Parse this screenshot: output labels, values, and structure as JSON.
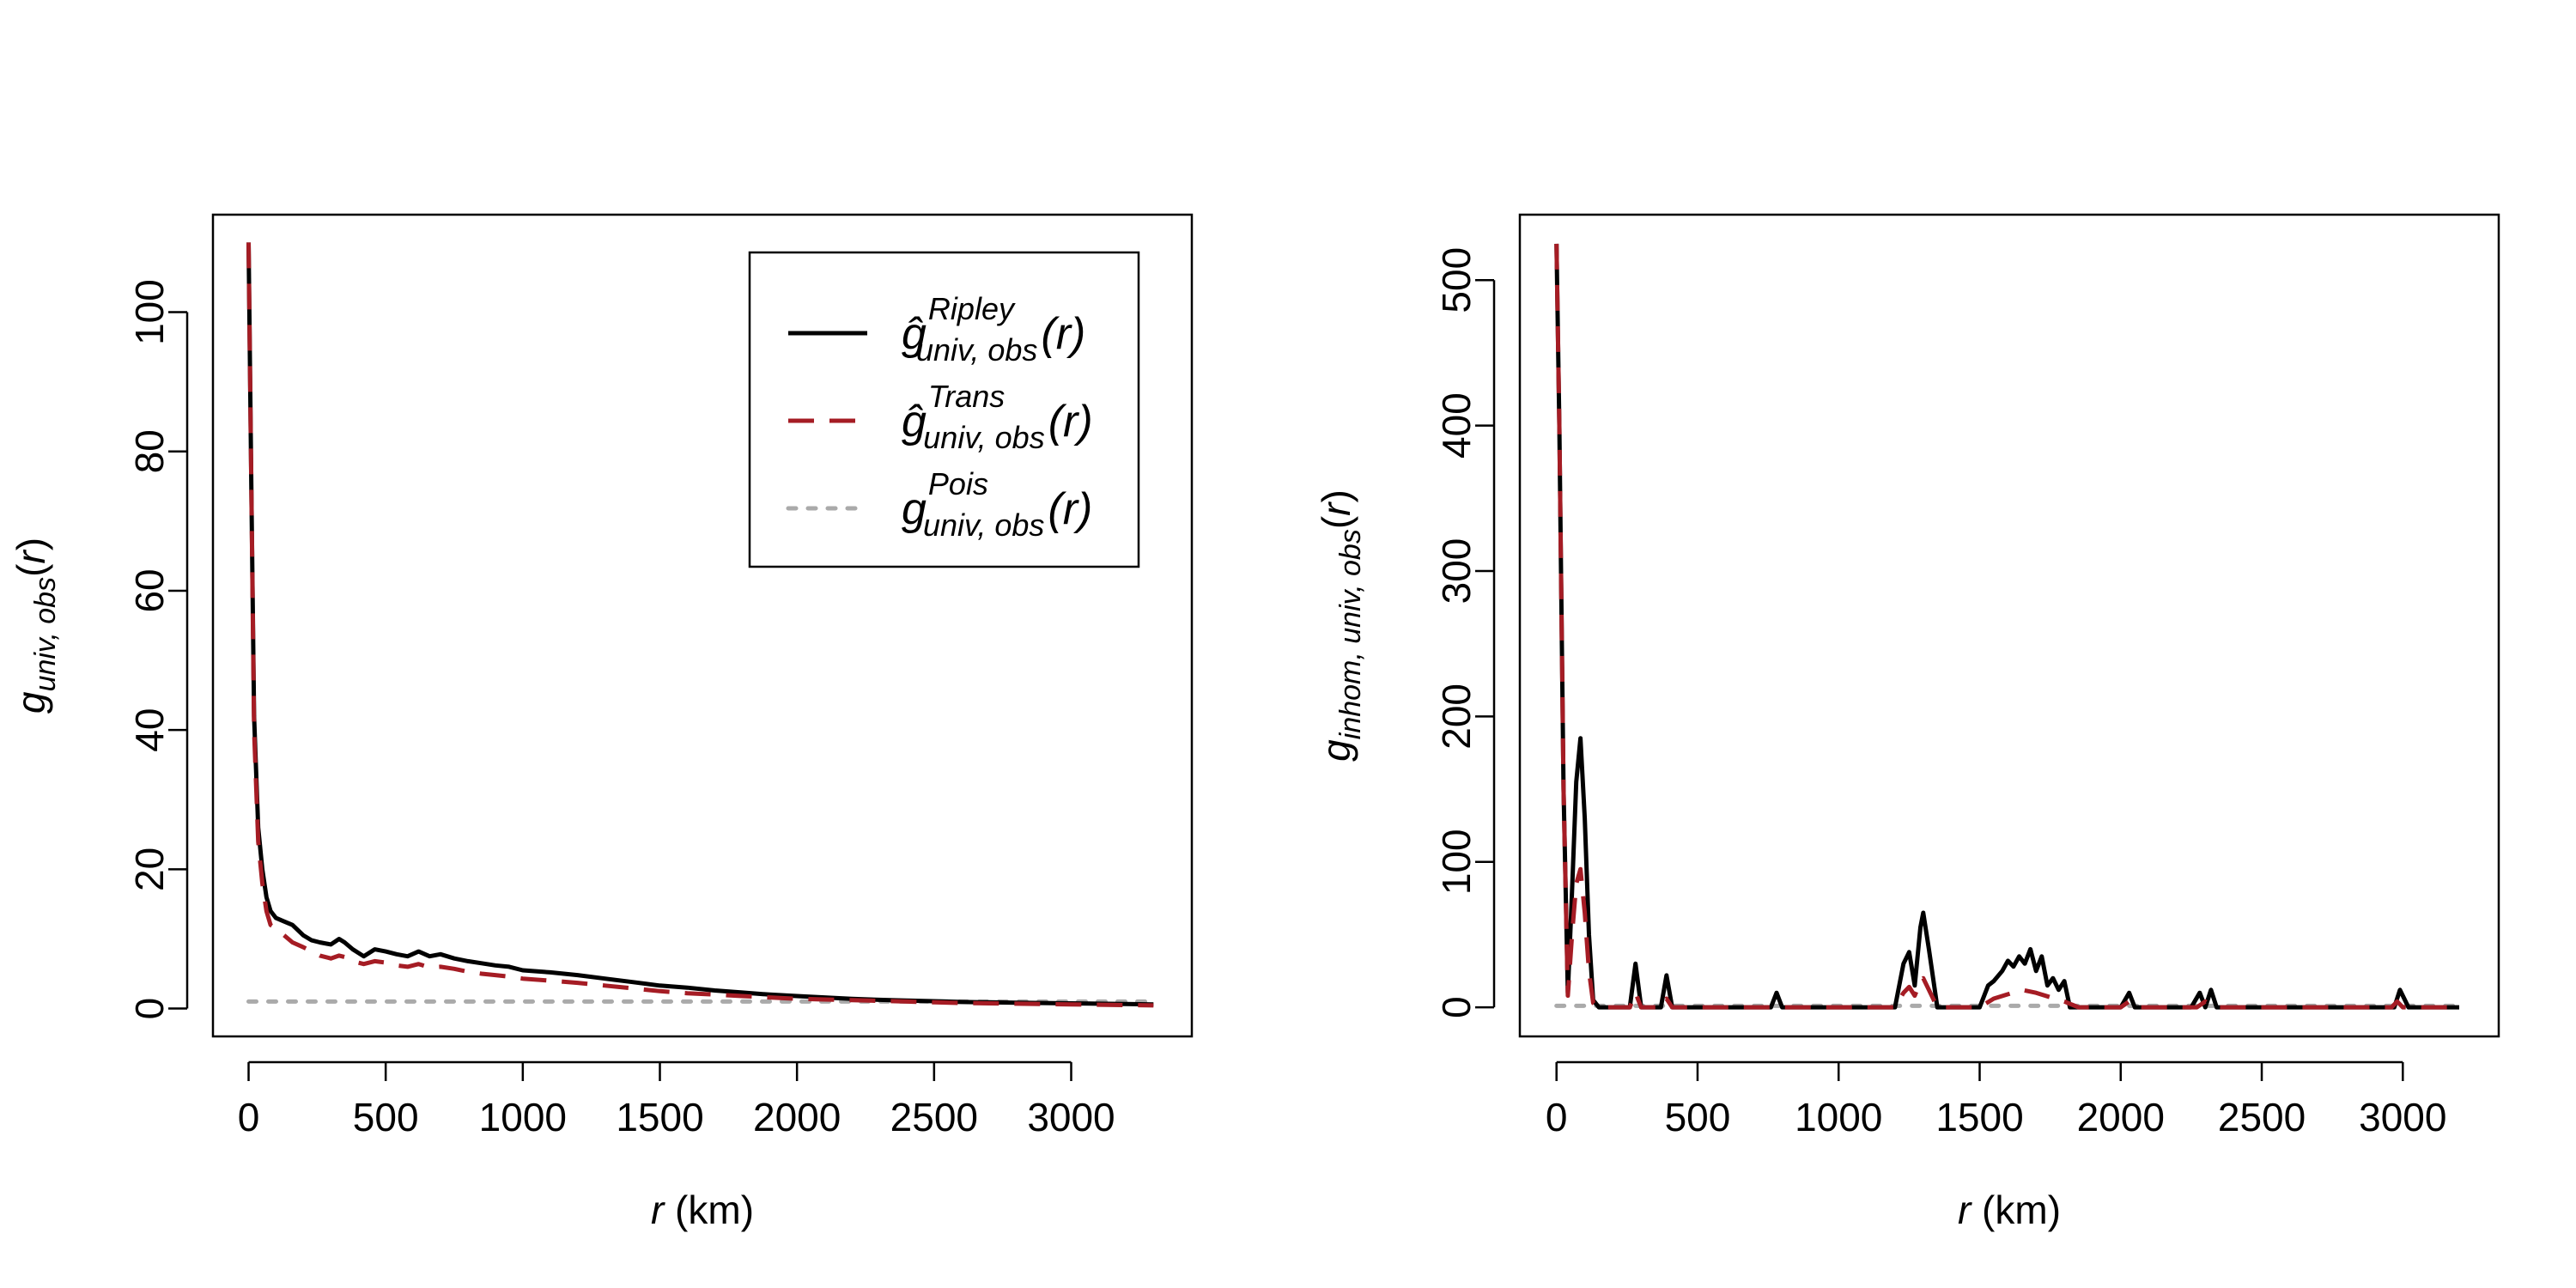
{
  "chart_data": [
    {
      "type": "line",
      "xlabel": "r (km)",
      "ylabel": "g_{univ, obs}(r)",
      "xlim": [
        -130,
        3440
      ],
      "ylim": [
        -4,
        114
      ],
      "xticks": [
        0,
        500,
        1000,
        1500,
        2000,
        2500,
        3000
      ],
      "yticks": [
        0,
        20,
        40,
        60,
        80,
        100
      ],
      "grid": false,
      "legend_position": "top-right",
      "series": [
        {
          "name": "ĝ^Ripley_univ, obs(r)",
          "color": "#000000",
          "style": "solid",
          "x": [
            0,
            10,
            20,
            35,
            50,
            65,
            80,
            100,
            130,
            160,
            200,
            230,
            260,
            300,
            330,
            350,
            380,
            420,
            460,
            500,
            540,
            580,
            620,
            660,
            700,
            750,
            800,
            850,
            900,
            950,
            1000,
            1100,
            1200,
            1300,
            1400,
            1500,
            1600,
            1700,
            1800,
            1900,
            2000,
            2100,
            2200,
            2300,
            2400,
            2500,
            2600,
            2700,
            2800,
            2900,
            3000,
            3100,
            3200,
            3300
          ],
          "y": [
            110,
            75,
            42,
            26,
            20,
            16,
            14,
            13,
            12.5,
            12,
            10.5,
            9.8,
            9.5,
            9.2,
            10,
            9.5,
            8.5,
            7.5,
            8.5,
            8.2,
            7.8,
            7.5,
            8.2,
            7.5,
            7.8,
            7.2,
            6.8,
            6.5,
            6.2,
            6,
            5.5,
            5.2,
            4.8,
            4.3,
            3.8,
            3.3,
            3,
            2.6,
            2.3,
            2,
            1.8,
            1.6,
            1.4,
            1.25,
            1.15,
            1.05,
            0.95,
            0.9,
            0.85,
            0.8,
            0.75,
            0.7,
            0.65,
            0.6
          ]
        },
        {
          "name": "ĝ^Trans_univ, obs(r)",
          "color": "#A51C24",
          "style": "dashed",
          "x": [
            0,
            10,
            20,
            35,
            50,
            65,
            80,
            100,
            130,
            160,
            200,
            230,
            260,
            300,
            330,
            350,
            380,
            420,
            460,
            500,
            540,
            580,
            620,
            660,
            700,
            750,
            800,
            850,
            900,
            950,
            1000,
            1100,
            1200,
            1300,
            1400,
            1500,
            1600,
            1700,
            1800,
            1900,
            2000,
            2100,
            2200,
            2300,
            2400,
            2500,
            2600,
            2700,
            2800,
            2900,
            3000,
            3100,
            3200,
            3300
          ],
          "y": [
            110,
            75,
            40,
            24,
            18,
            14,
            12,
            11.5,
            10.5,
            9.5,
            8.8,
            8.2,
            7.6,
            7.2,
            7.6,
            7.4,
            6.8,
            6.4,
            6.8,
            6.6,
            6.2,
            6,
            6.4,
            5.9,
            6,
            5.7,
            5.3,
            5,
            4.8,
            4.6,
            4.3,
            4,
            3.7,
            3.3,
            2.9,
            2.5,
            2.2,
            2,
            1.8,
            1.6,
            1.4,
            1.3,
            1.2,
            1.1,
            1,
            0.9,
            0.8,
            0.75,
            0.7,
            0.65,
            0.6,
            0.55,
            0.5,
            0.45
          ]
        },
        {
          "name": "g^Pois_univ, obs(r)",
          "color": "#AAAAAA",
          "style": "dotted",
          "x": [
            0,
            3300
          ],
          "y": [
            1,
            1
          ]
        }
      ],
      "legend": [
        {
          "sym": "ĝ",
          "sup": "Ripley",
          "sub": "univ, obs",
          "arg": "(r)"
        },
        {
          "sym": "ĝ",
          "sup": "Trans",
          "sub": "univ, obs",
          "arg": "(r)"
        },
        {
          "sym": "g",
          "sup": "Pois",
          "sub": "univ, obs",
          "arg": "(r)"
        }
      ]
    },
    {
      "type": "line",
      "xlabel": "r (km)",
      "ylabel": "g_{inhom, univ, obs}(r)",
      "xlim": [
        -130,
        3340
      ],
      "ylim": [
        -20,
        545
      ],
      "xticks": [
        0,
        500,
        1000,
        1500,
        2000,
        2500,
        3000
      ],
      "yticks": [
        0,
        100,
        200,
        300,
        400,
        500
      ],
      "grid": false,
      "series": [
        {
          "name": "",
          "color": "#000000",
          "style": "solid",
          "x": [
            0,
            10,
            25,
            40,
            55,
            70,
            85,
            100,
            115,
            130,
            150,
            200,
            260,
            280,
            300,
            340,
            370,
            390,
            410,
            450,
            500,
            700,
            760,
            780,
            800,
            850,
            1000,
            1150,
            1200,
            1230,
            1250,
            1270,
            1290,
            1300,
            1320,
            1350,
            1400,
            1500,
            1530,
            1550,
            1580,
            1600,
            1620,
            1640,
            1660,
            1680,
            1700,
            1720,
            1740,
            1760,
            1780,
            1800,
            1820,
            1850,
            1950,
            2000,
            2030,
            2050,
            2100,
            2250,
            2280,
            2300,
            2320,
            2340,
            2360,
            2400,
            2900,
            2950,
            2970,
            2990,
            3020,
            3100,
            3200
          ],
          "y": [
            525,
            400,
            150,
            10,
            80,
            155,
            185,
            130,
            50,
            5,
            0,
            0,
            0,
            30,
            0,
            0,
            0,
            22,
            0,
            0,
            0,
            0,
            0,
            10,
            0,
            0,
            0,
            0,
            0,
            30,
            38,
            15,
            55,
            65,
            40,
            0,
            0,
            0,
            15,
            18,
            25,
            32,
            28,
            35,
            30,
            40,
            25,
            35,
            15,
            20,
            12,
            18,
            0,
            0,
            0,
            0,
            10,
            0,
            0,
            0,
            10,
            0,
            12,
            0,
            0,
            0,
            0,
            0,
            0,
            12,
            0,
            0,
            0
          ]
        },
        {
          "name": "",
          "color": "#A51C24",
          "style": "dashed",
          "x": [
            0,
            10,
            25,
            40,
            55,
            70,
            85,
            100,
            115,
            130,
            150,
            200,
            260,
            280,
            300,
            340,
            370,
            390,
            410,
            450,
            500,
            1200,
            1230,
            1250,
            1270,
            1290,
            1300,
            1320,
            1350,
            1500,
            1550,
            1600,
            1650,
            1700,
            1750,
            1800,
            1850,
            2000,
            2030,
            2050,
            2270,
            2300,
            2330,
            2960,
            2980,
            3000,
            3200
          ],
          "y": [
            525,
            400,
            150,
            8,
            50,
            85,
            95,
            65,
            25,
            3,
            0,
            0,
            0,
            10,
            0,
            0,
            0,
            6,
            0,
            0,
            0,
            0,
            10,
            14,
            8,
            18,
            20,
            12,
            0,
            0,
            6,
            9,
            12,
            10,
            7,
            4,
            0,
            0,
            4,
            0,
            0,
            4,
            0,
            0,
            4,
            0,
            0
          ]
        },
        {
          "name": "",
          "color": "#AAAAAA",
          "style": "dotted",
          "x": [
            0,
            3200
          ],
          "y": [
            1,
            1
          ]
        }
      ]
    }
  ]
}
